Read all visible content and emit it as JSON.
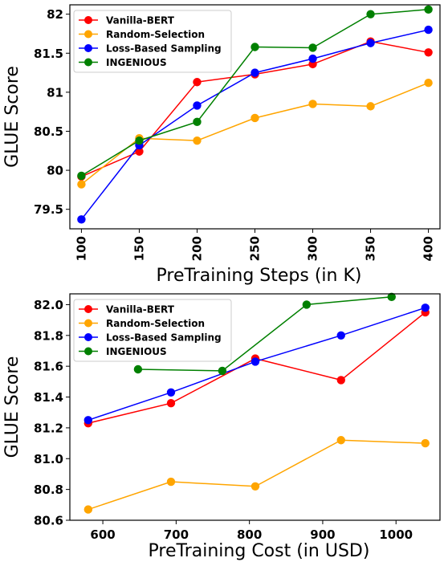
{
  "chart_data": [
    {
      "type": "line",
      "xlabel": "PreTraining Steps (in K)",
      "ylabel": "GLUE Score",
      "xlim": [
        90,
        410
      ],
      "ylim": [
        79.25,
        82.12
      ],
      "xticks": [
        100,
        150,
        200,
        250,
        300,
        350,
        400
      ],
      "xtick_rotation": -90,
      "yticks": [
        79.5,
        80.0,
        80.5,
        81.0,
        81.5,
        82.0
      ],
      "grid": false,
      "legend": "top-left",
      "series": [
        {
          "name": "Vanilla-BERT",
          "color": "#ff0000",
          "x": [
            100,
            150,
            200,
            250,
            300,
            350,
            400
          ],
          "y": [
            79.92,
            80.24,
            81.13,
            81.23,
            81.36,
            81.65,
            81.51
          ]
        },
        {
          "name": "Random-Selection",
          "color": "#ffa500",
          "x": [
            100,
            150,
            200,
            250,
            300,
            350,
            400
          ],
          "y": [
            79.82,
            80.41,
            80.38,
            80.67,
            80.85,
            80.82,
            81.12
          ]
        },
        {
          "name": "Loss-Based Sampling",
          "color": "#0000ff",
          "x": [
            100,
            150,
            200,
            250,
            300,
            350,
            400
          ],
          "y": [
            79.37,
            80.32,
            80.83,
            81.25,
            81.43,
            81.63,
            81.8
          ]
        },
        {
          "name": "INGENIOUS",
          "color": "#008000",
          "x": [
            100,
            150,
            200,
            250,
            300,
            350,
            400
          ],
          "y": [
            79.93,
            80.38,
            80.62,
            81.58,
            81.57,
            82.0,
            82.06
          ]
        }
      ]
    },
    {
      "type": "line",
      "xlabel": "PreTraining Cost (in USD)",
      "ylabel": "GLUE Score",
      "xlim": [
        555,
        1060
      ],
      "ylim": [
        80.6,
        82.07
      ],
      "xticks": [
        600,
        700,
        800,
        900,
        1000
      ],
      "yticks": [
        80.6,
        80.8,
        81.0,
        81.2,
        81.4,
        81.6,
        81.8,
        82.0
      ],
      "ytick_labels": [
        "80.6",
        "80.8",
        "81.0",
        "81.2",
        "81.4",
        "81.6",
        "81.8",
        "82.0"
      ],
      "grid": false,
      "legend": "top-left",
      "series": [
        {
          "name": "Vanilla-BERT",
          "color": "#ff0000",
          "x": [
            580,
            693,
            808,
            925,
            1040
          ],
          "y": [
            81.23,
            81.36,
            81.65,
            81.51,
            81.95
          ]
        },
        {
          "name": "Random-Selection",
          "color": "#ffa500",
          "x": [
            580,
            693,
            808,
            925,
            1040
          ],
          "y": [
            80.67,
            80.85,
            80.82,
            81.12,
            81.1
          ]
        },
        {
          "name": "Loss-Based Sampling",
          "color": "#0000ff",
          "x": [
            580,
            693,
            808,
            925,
            1040
          ],
          "y": [
            81.25,
            81.43,
            81.63,
            81.8,
            81.98
          ]
        },
        {
          "name": "INGENIOUS",
          "color": "#008000",
          "x": [
            648,
            763,
            878,
            994
          ],
          "y": [
            81.58,
            81.57,
            82.0,
            82.05
          ]
        }
      ]
    }
  ]
}
